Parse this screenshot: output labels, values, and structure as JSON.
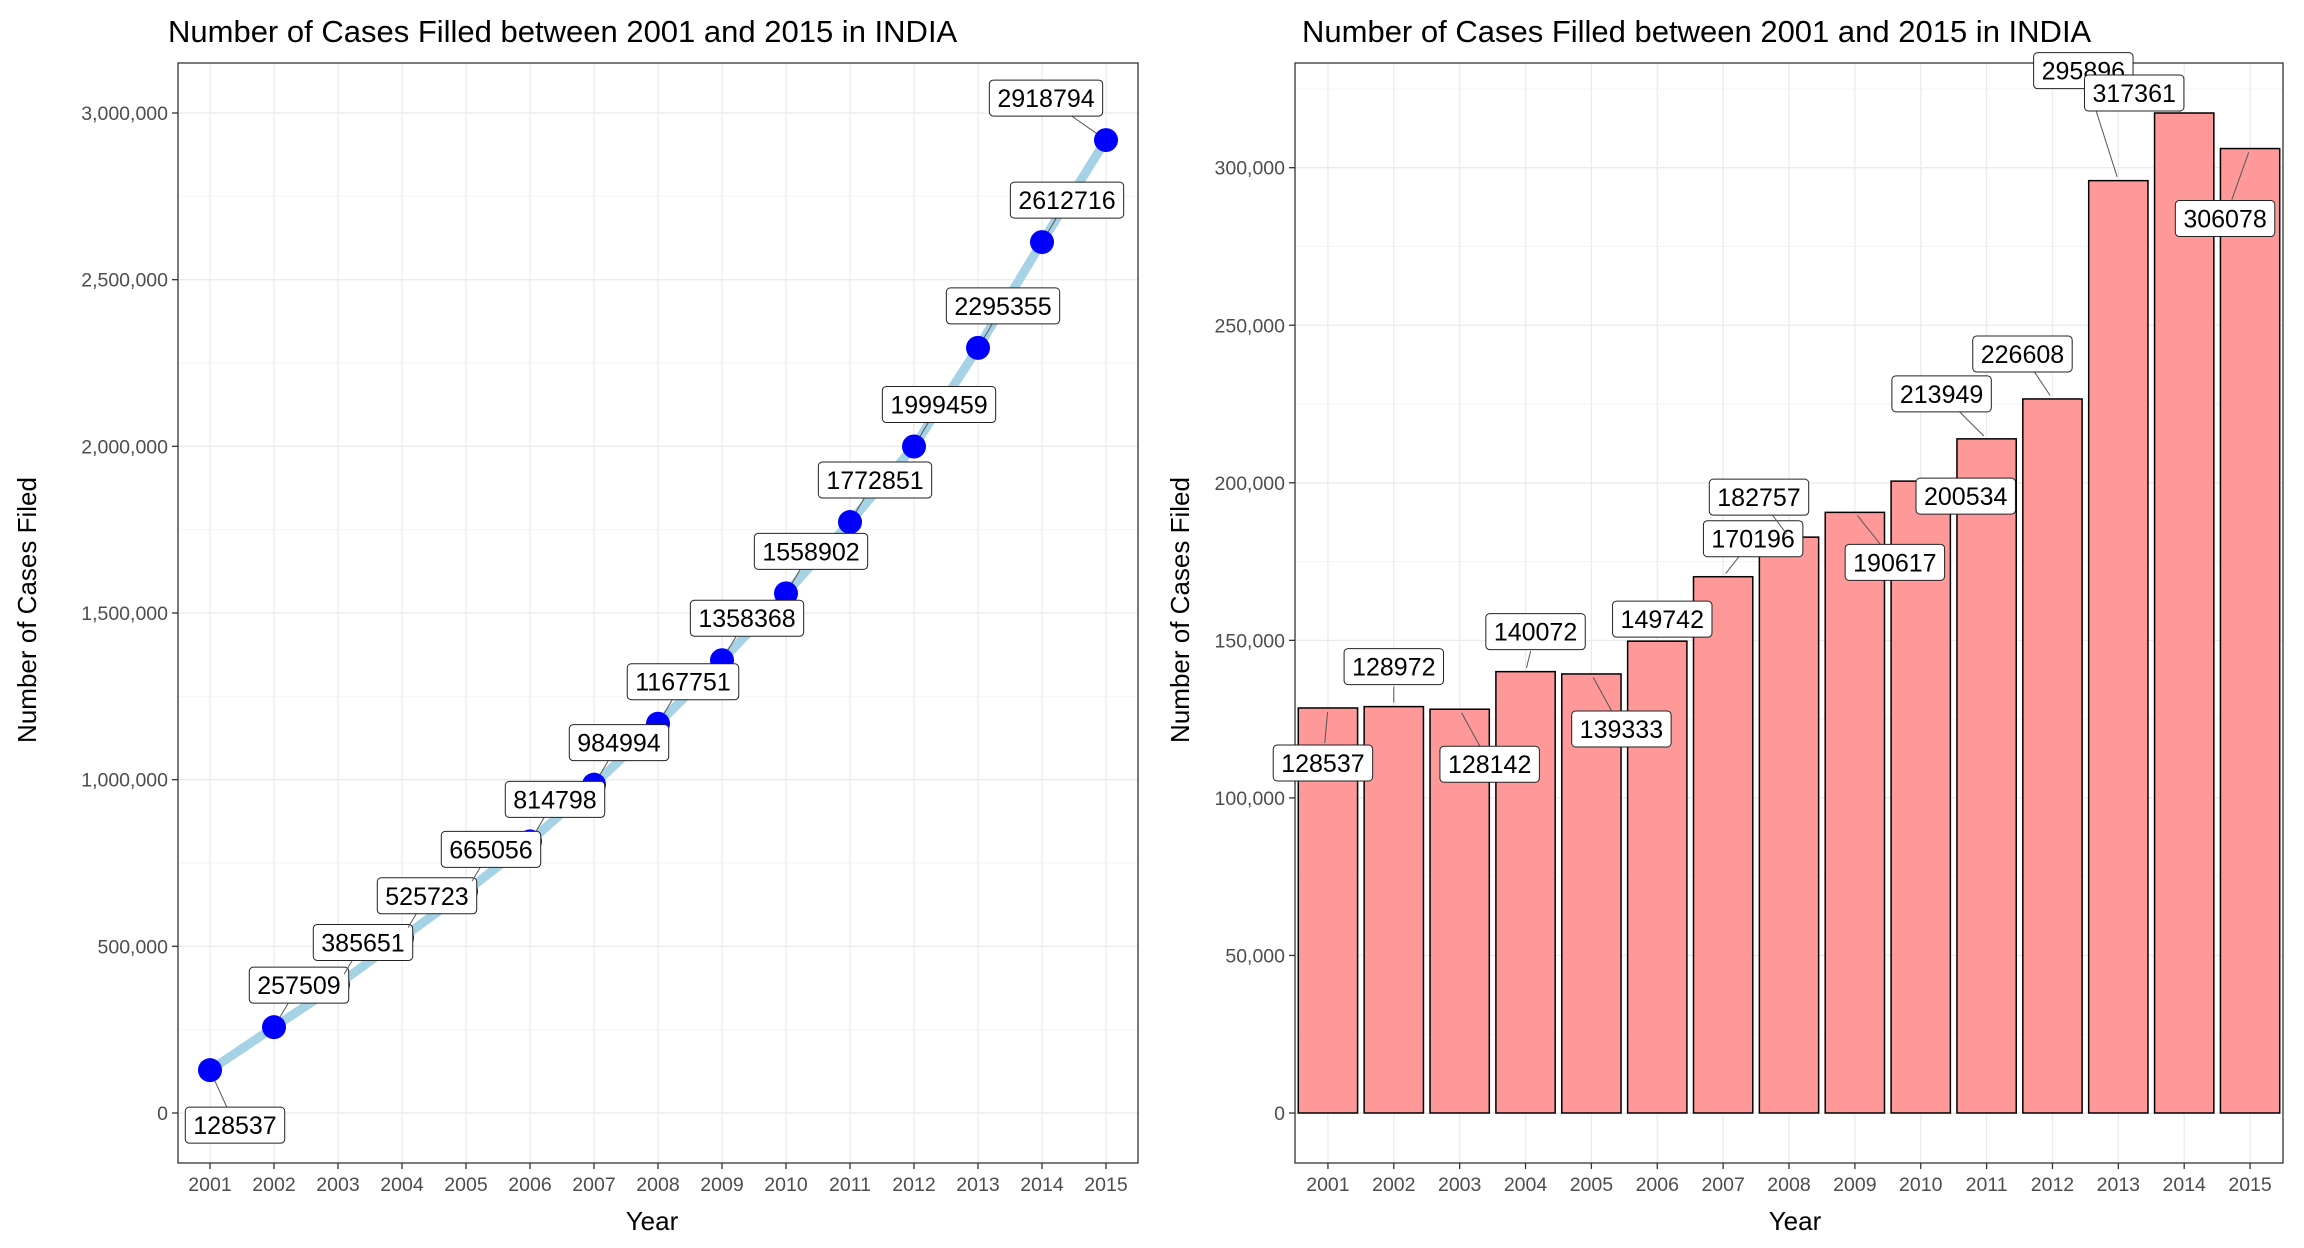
{
  "chart_data": [
    {
      "type": "line",
      "title": "Number of Cases Filled between 2001 and 2015 in INDIA",
      "xlabel": "Year",
      "ylabel": "Number of Cases Filed",
      "categories": [
        "2001",
        "2002",
        "2003",
        "2004",
        "2005",
        "2006",
        "2007",
        "2008",
        "2009",
        "2010",
        "2011",
        "2012",
        "2013",
        "2014",
        "2015"
      ],
      "values": [
        128537,
        257509,
        385651,
        525723,
        665056,
        814798,
        984994,
        1167751,
        1358368,
        1558902,
        1772851,
        1999459,
        2295355,
        2612716,
        2918794
      ],
      "data_labels": [
        "128537",
        "257509",
        "385651",
        "525723",
        "665056",
        "814798",
        "984994",
        "1167751",
        "1358368",
        "1558902",
        "1772851",
        "1999459",
        "2295355",
        "2612716",
        "2918794"
      ],
      "ylim": [
        -150000,
        3150000
      ],
      "yticks": [
        0,
        500000,
        1000000,
        1500000,
        2000000,
        2500000,
        3000000
      ],
      "ytick_labels": [
        "0",
        "500,000",
        "1,000,000",
        "1,500,000",
        "2,000,000",
        "2,500,000",
        "3,000,000"
      ],
      "grid": true,
      "colors": {
        "line": "#a6d2e6",
        "point": "#0000ff"
      }
    },
    {
      "type": "bar",
      "title": "Number of Cases Filled between 2001 and 2015 in INDIA",
      "xlabel": "Year",
      "ylabel": "Number of Cases Filed",
      "categories": [
        "2001",
        "2002",
        "2003",
        "2004",
        "2005",
        "2006",
        "2007",
        "2008",
        "2009",
        "2010",
        "2011",
        "2012",
        "2013",
        "2014",
        "2015"
      ],
      "values": [
        128537,
        128972,
        128142,
        140072,
        139333,
        149742,
        170196,
        182757,
        190617,
        200534,
        213949,
        226608,
        295896,
        317361,
        306078
      ],
      "data_labels": [
        "128537",
        "128972",
        "128142",
        "140072",
        "139333",
        "149742",
        "170196",
        "182757",
        "190617",
        "200534",
        "213949",
        "226608",
        "295896",
        "317361",
        "306078"
      ],
      "ylim": [
        -15869,
        333230
      ],
      "yticks": [
        0,
        50000,
        100000,
        150000,
        200000,
        250000,
        300000
      ],
      "ytick_labels": [
        "0",
        "50,000",
        "100,000",
        "150,000",
        "200,000",
        "250,000",
        "300,000"
      ],
      "grid": true,
      "colors": {
        "bar_fill": "#ff9999",
        "bar_stroke": "#000000"
      }
    }
  ]
}
